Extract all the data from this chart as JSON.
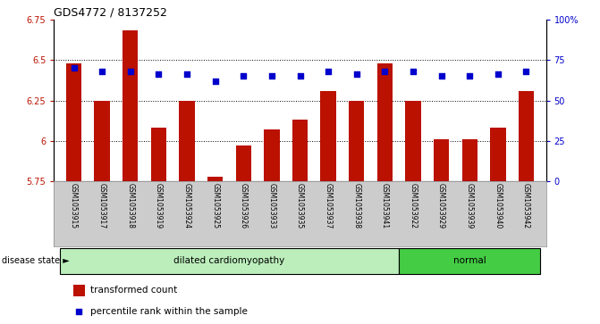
{
  "title": "GDS4772 / 8137252",
  "samples": [
    "GSM1053915",
    "GSM1053917",
    "GSM1053918",
    "GSM1053919",
    "GSM1053924",
    "GSM1053925",
    "GSM1053926",
    "GSM1053933",
    "GSM1053935",
    "GSM1053937",
    "GSM1053938",
    "GSM1053941",
    "GSM1053922",
    "GSM1053929",
    "GSM1053939",
    "GSM1053940",
    "GSM1053942"
  ],
  "transformed_count": [
    6.48,
    6.25,
    6.68,
    6.08,
    6.25,
    5.78,
    5.97,
    6.07,
    6.13,
    6.31,
    6.25,
    6.48,
    6.25,
    6.01,
    6.01,
    6.08,
    6.31
  ],
  "percentile_rank": [
    70,
    68,
    68,
    66,
    66,
    62,
    65,
    65,
    65,
    68,
    66,
    68,
    68,
    65,
    65,
    66,
    68
  ],
  "disease_groups": [
    {
      "label": "dilated cardiomyopathy",
      "start": 0,
      "end": 11,
      "color": "#bbeebb"
    },
    {
      "label": "normal",
      "start": 12,
      "end": 16,
      "color": "#44cc44"
    }
  ],
  "ylim_left": [
    5.75,
    6.75
  ],
  "ylim_right": [
    0,
    100
  ],
  "yticks_left": [
    5.75,
    6.0,
    6.25,
    6.5,
    6.75
  ],
  "ytick_labels_left": [
    "5.75",
    "6",
    "6.25",
    "6.5",
    "6.75"
  ],
  "yticks_right": [
    0,
    25,
    50,
    75,
    100
  ],
  "ytick_labels_right": [
    "0",
    "25",
    "50",
    "75",
    "100%"
  ],
  "bar_color": "#bb1100",
  "dot_color": "#0000cc",
  "grid_color": "#000000",
  "label_area_color": "#cccccc",
  "legend_bar_label": "transformed count",
  "legend_dot_label": "percentile rank within the sample",
  "disease_state_label": "disease state"
}
